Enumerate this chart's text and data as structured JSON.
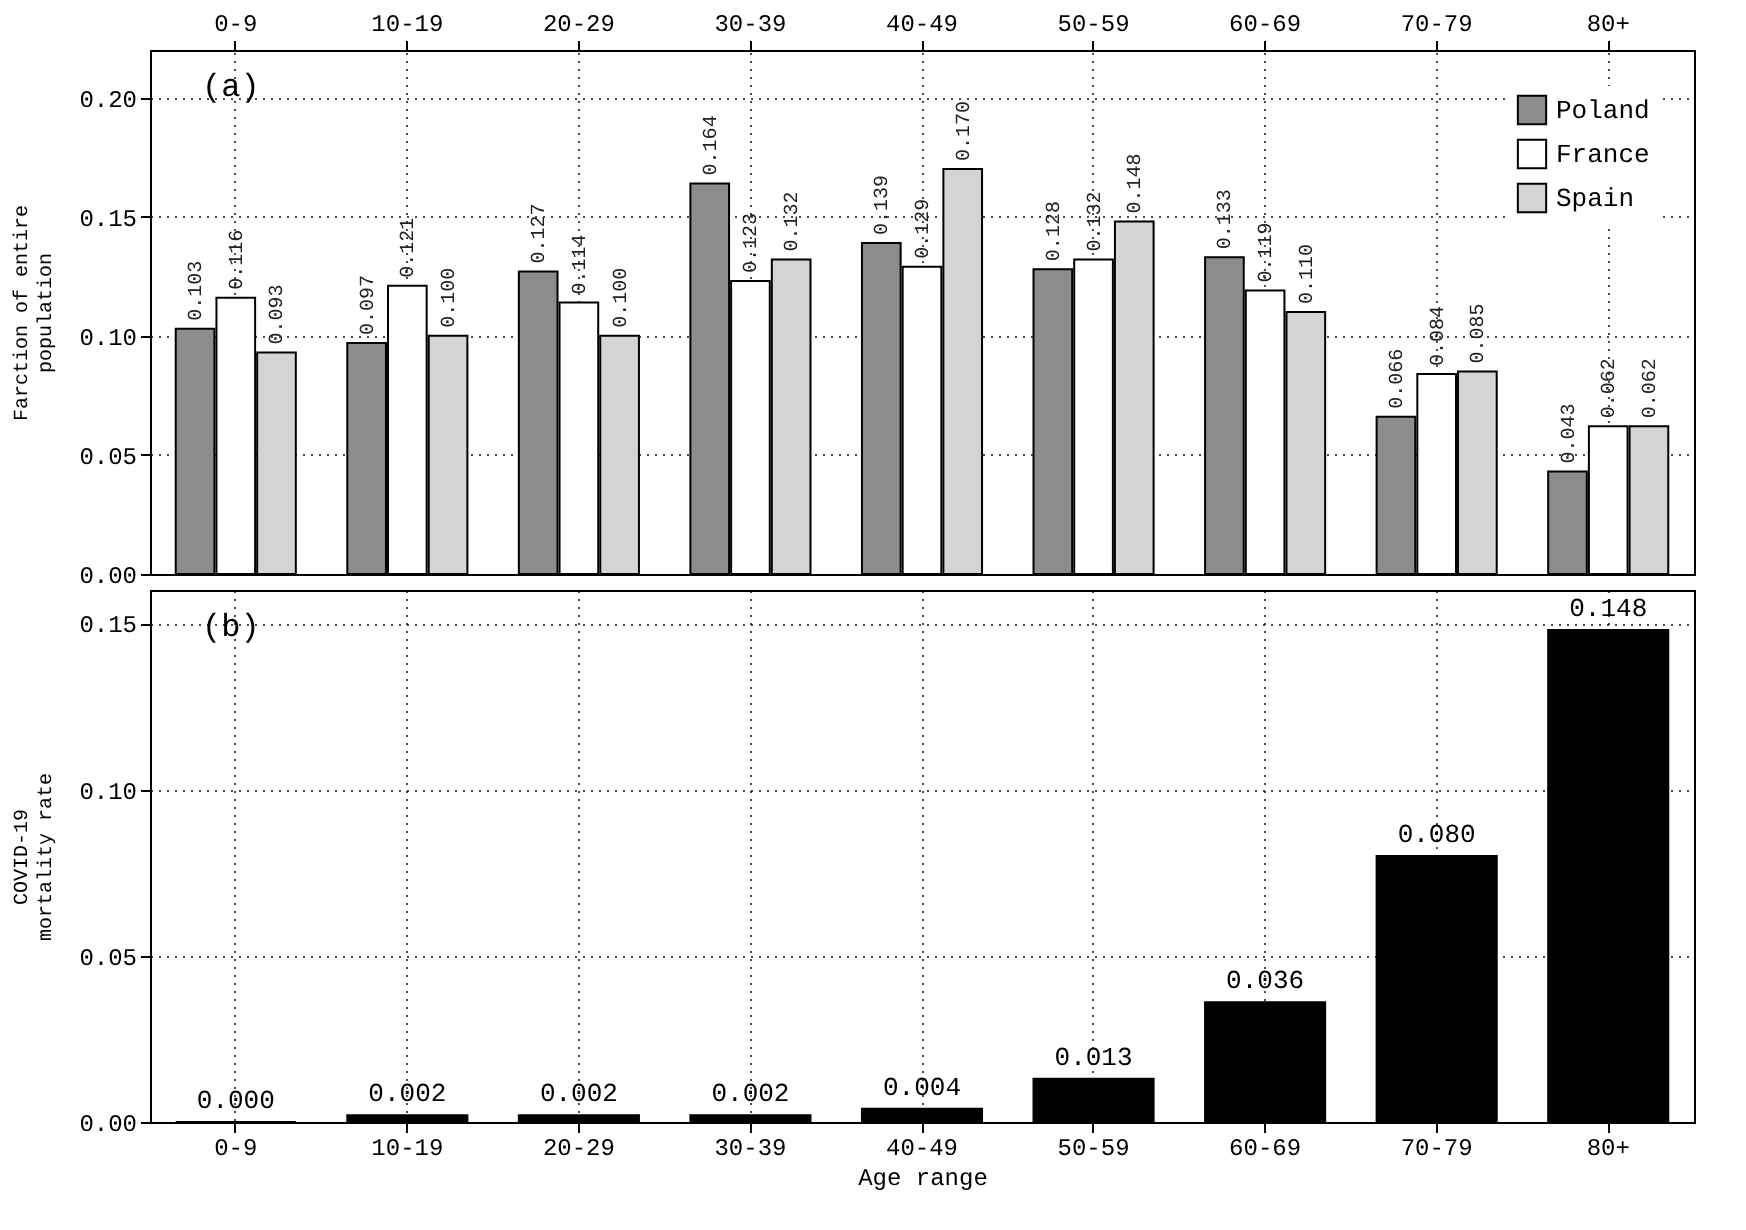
{
  "chart_data": [
    {
      "type": "bar",
      "ylabel": "Farction of entire\npopulation",
      "annotations": [
        "(a)"
      ],
      "categories": [
        "0-9",
        "10-19",
        "20-29",
        "30-39",
        "40-49",
        "50-59",
        "60-69",
        "70-79",
        "80+"
      ],
      "series": [
        {
          "name": "Poland",
          "color": "#8c8c8c",
          "values": [
            0.103,
            0.097,
            0.127,
            0.164,
            0.139,
            0.128,
            0.133,
            0.066,
            0.043
          ],
          "value_labels": [
            "0.103",
            "0.097",
            "0.127",
            "0.164",
            "0.139",
            "0.128",
            "0.133",
            "0.066",
            "0.043"
          ]
        },
        {
          "name": "France",
          "color": "#ffffff",
          "values": [
            0.116,
            0.121,
            0.114,
            0.123,
            0.129,
            0.132,
            0.119,
            0.084,
            0.062
          ],
          "value_labels": [
            "0.116",
            "0.121",
            "0.114",
            "0.123",
            "0.129",
            "0.132",
            "0.119",
            "0.084",
            "0.062"
          ]
        },
        {
          "name": "Spain",
          "color": "#d4d4d4",
          "values": [
            0.093,
            0.1,
            0.1,
            0.132,
            0.17,
            0.148,
            0.11,
            0.085,
            0.062
          ],
          "value_labels": [
            "0.093",
            "0.100",
            "0.100",
            "0.132",
            "0.170",
            "0.148",
            "0.110",
            "0.085",
            "0.062"
          ]
        }
      ],
      "ylim": [
        0,
        0.22
      ],
      "yticks": [
        {
          "value": 0,
          "label": "0.00"
        },
        {
          "value": 0.05,
          "label": "0.05"
        },
        {
          "value": 0.1,
          "label": "0.10"
        },
        {
          "value": 0.15,
          "label": "0.15"
        },
        {
          "value": 0.2,
          "label": "0.20"
        }
      ],
      "grid": true,
      "legend": "top right"
    },
    {
      "type": "bar",
      "xlabel": "Age range",
      "ylabel": "COVID-19\nmortality rate",
      "annotations": [
        "(b)"
      ],
      "categories": [
        "0-9",
        "10-19",
        "20-29",
        "30-39",
        "40-49",
        "50-59",
        "60-69",
        "70-79",
        "80+"
      ],
      "series": [
        {
          "color": "#000000",
          "values": [
            0.0,
            0.002,
            0.002,
            0.002,
            0.004,
            0.013,
            0.036,
            0.08,
            0.148
          ],
          "value_labels": [
            "0.000",
            "0.002",
            "0.002",
            "0.002",
            "0.004",
            "0.013",
            "0.036",
            "0.080",
            "0.148"
          ]
        }
      ],
      "ylim": [
        0,
        0.16
      ],
      "yticks": [
        {
          "value": 0,
          "label": "0.00"
        },
        {
          "value": 0.05,
          "label": "0.05"
        },
        {
          "value": 0.1,
          "label": "0.10"
        },
        {
          "value": 0.15,
          "label": "0.15"
        }
      ],
      "grid": true
    }
  ]
}
